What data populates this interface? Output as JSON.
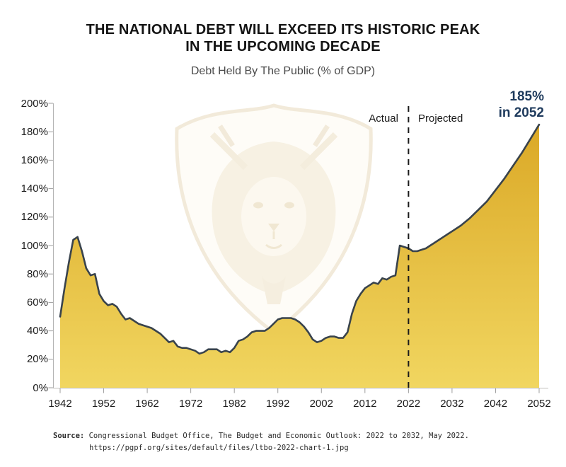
{
  "header": {
    "title_line1": "THE NATIONAL DEBT WILL EXCEED ITS HISTORIC PEAK",
    "title_line2": "IN THE UPCOMING DECADE",
    "subtitle": "Debt Held By The Public (% of GDP)"
  },
  "plot_labels": {
    "actual": "Actual",
    "projected": "Projected",
    "peak_line1": "185%",
    "peak_line2": "in 2052"
  },
  "source": {
    "label": "Source:",
    "line1": "Congressional Budget Office, The Budget and Economic Outlook: 2022 to 2032, May 2022.",
    "line2": "https://pgpf.org/sites/default/files/ltbo-2022-chart-1.jpg"
  },
  "colors": {
    "area_top": "#D9A522",
    "area_bottom": "#F1D660",
    "line": "#39434C",
    "divider": "#1A1A1A",
    "annotation_navy": "#1F3B5D",
    "axis": "#B5B5B5",
    "tick": "#9D9D9D",
    "watermark": "#F3ECDB"
  },
  "chart_data": {
    "type": "area",
    "title": "THE NATIONAL DEBT WILL EXCEED ITS HISTORIC PEAK IN THE UPCOMING DECADE",
    "subtitle": "Debt Held By The Public (% of GDP)",
    "xlabel": "",
    "ylabel": "",
    "grid": false,
    "legend_position": "none",
    "xlim": [
      1942,
      2052
    ],
    "ylim": [
      0,
      200
    ],
    "x_ticks": [
      1942,
      1952,
      1962,
      1972,
      1982,
      1992,
      2002,
      2012,
      2022,
      2032,
      2042,
      2052
    ],
    "x_tick_labels": [
      "1942",
      "1952",
      "1962",
      "1972",
      "1982",
      "1992",
      "2002",
      "2012",
      "2022",
      "2032",
      "2042",
      "2052"
    ],
    "y_ticks": [
      0,
      20,
      40,
      60,
      80,
      100,
      120,
      140,
      160,
      180,
      200
    ],
    "y_tick_labels": [
      "0%",
      "20%",
      "40%",
      "60%",
      "80%",
      "100%",
      "120%",
      "140%",
      "160%",
      "180%",
      "200%"
    ],
    "divider_year": 2022,
    "divider_label_left": "Actual",
    "divider_label_right": "Projected",
    "annotation": {
      "label": "185% in 2052",
      "year": 2052,
      "value_percent": 185
    },
    "series": [
      {
        "name": "Actual",
        "points": [
          [
            1942,
            50
          ],
          [
            1943,
            70
          ],
          [
            1944,
            88
          ],
          [
            1945,
            104
          ],
          [
            1946,
            106
          ],
          [
            1947,
            96
          ],
          [
            1948,
            84
          ],
          [
            1949,
            79
          ],
          [
            1950,
            80
          ],
          [
            1951,
            66
          ],
          [
            1952,
            61
          ],
          [
            1953,
            58
          ],
          [
            1954,
            59
          ],
          [
            1955,
            57
          ],
          [
            1956,
            52
          ],
          [
            1957,
            48
          ],
          [
            1958,
            49
          ],
          [
            1959,
            47
          ],
          [
            1960,
            45
          ],
          [
            1961,
            44
          ],
          [
            1962,
            43
          ],
          [
            1963,
            42
          ],
          [
            1964,
            40
          ],
          [
            1965,
            38
          ],
          [
            1966,
            35
          ],
          [
            1967,
            32
          ],
          [
            1968,
            33
          ],
          [
            1969,
            29
          ],
          [
            1970,
            28
          ],
          [
            1971,
            28
          ],
          [
            1972,
            27
          ],
          [
            1973,
            26
          ],
          [
            1974,
            24
          ],
          [
            1975,
            25
          ],
          [
            1976,
            27
          ],
          [
            1977,
            27
          ],
          [
            1978,
            27
          ],
          [
            1979,
            25
          ],
          [
            1980,
            26
          ],
          [
            1981,
            25
          ],
          [
            1982,
            28
          ],
          [
            1983,
            33
          ],
          [
            1984,
            34
          ],
          [
            1985,
            36
          ],
          [
            1986,
            39
          ],
          [
            1987,
            40
          ],
          [
            1988,
            40
          ],
          [
            1989,
            40
          ],
          [
            1990,
            42
          ],
          [
            1991,
            45
          ],
          [
            1992,
            48
          ],
          [
            1993,
            49
          ],
          [
            1994,
            49
          ],
          [
            1995,
            49
          ],
          [
            1996,
            48
          ],
          [
            1997,
            46
          ],
          [
            1998,
            43
          ],
          [
            1999,
            39
          ],
          [
            2000,
            34
          ],
          [
            2001,
            32
          ],
          [
            2002,
            33
          ],
          [
            2003,
            35
          ],
          [
            2004,
            36
          ],
          [
            2005,
            36
          ],
          [
            2006,
            35
          ],
          [
            2007,
            35
          ],
          [
            2008,
            39
          ],
          [
            2009,
            52
          ],
          [
            2010,
            61
          ],
          [
            2011,
            66
          ],
          [
            2012,
            70
          ],
          [
            2013,
            72
          ],
          [
            2014,
            74
          ],
          [
            2015,
            73
          ],
          [
            2016,
            77
          ],
          [
            2017,
            76
          ],
          [
            2018,
            78
          ],
          [
            2019,
            79
          ],
          [
            2020,
            100
          ],
          [
            2021,
            99
          ],
          [
            2022,
            98
          ]
        ]
      },
      {
        "name": "Projected",
        "points": [
          [
            2022,
            98
          ],
          [
            2023,
            96
          ],
          [
            2024,
            96
          ],
          [
            2025,
            97
          ],
          [
            2026,
            98
          ],
          [
            2027,
            100
          ],
          [
            2028,
            102
          ],
          [
            2029,
            104
          ],
          [
            2030,
            106
          ],
          [
            2031,
            108
          ],
          [
            2032,
            110
          ],
          [
            2034,
            114
          ],
          [
            2036,
            119
          ],
          [
            2038,
            125
          ],
          [
            2040,
            131
          ],
          [
            2042,
            139
          ],
          [
            2044,
            147
          ],
          [
            2046,
            156
          ],
          [
            2048,
            165
          ],
          [
            2050,
            175
          ],
          [
            2052,
            185
          ]
        ]
      }
    ]
  }
}
